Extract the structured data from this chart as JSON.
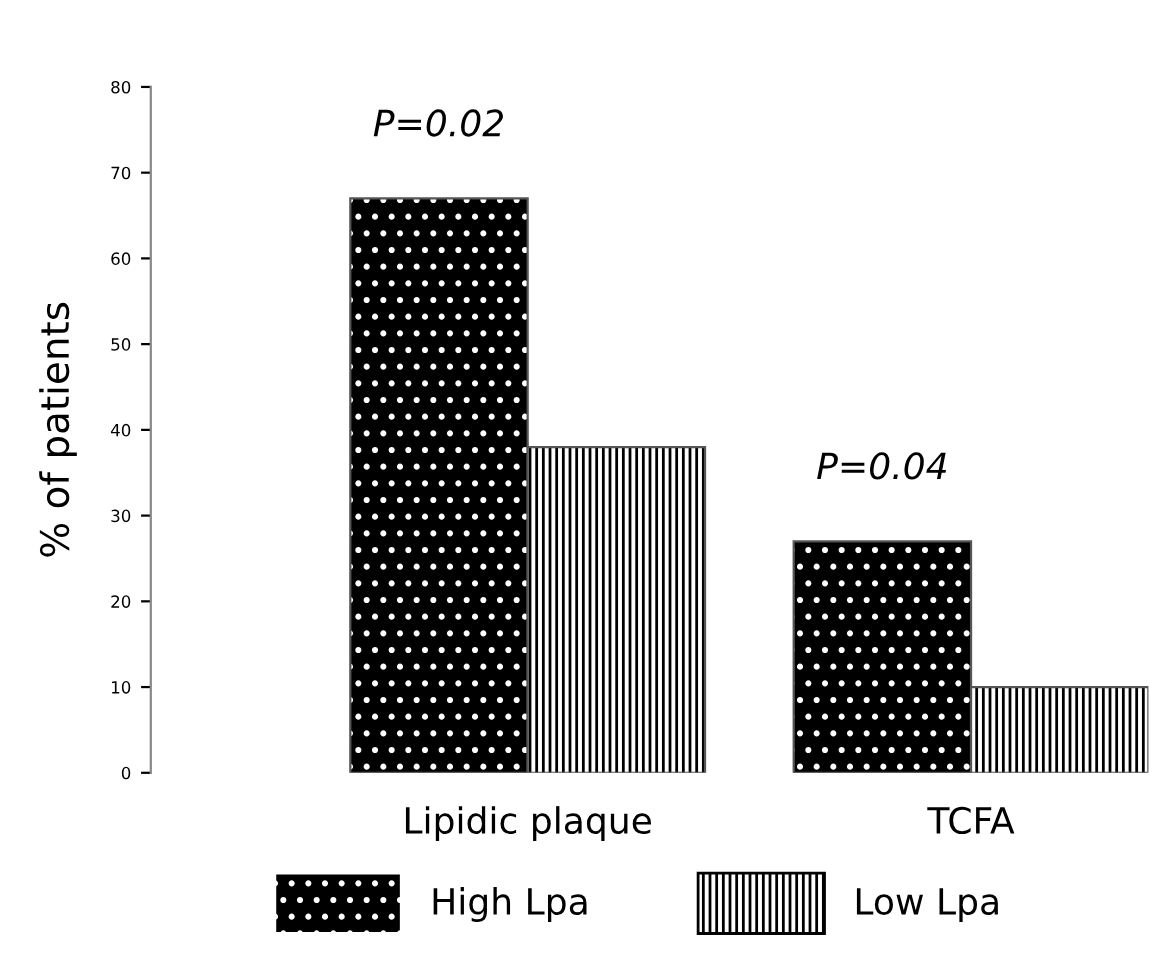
{
  "chart_data": {
    "type": "bar",
    "ylabel": "% of patients",
    "categories": [
      "Lipidic plaque",
      "TCFA"
    ],
    "series": [
      {
        "name": "High Lpa",
        "color": "#000000",
        "values": [
          67,
          27
        ]
      },
      {
        "name": "Low Lpa",
        "color": "#ffffff",
        "values": [
          38,
          10
        ]
      }
    ],
    "ylim": [
      0,
      80
    ],
    "yticks": [
      0,
      10,
      20,
      30,
      40,
      50,
      60,
      70,
      80
    ],
    "grid": false,
    "legend": "bottom",
    "annotations": [
      "P=0.02",
      "P=0.04"
    ]
  }
}
